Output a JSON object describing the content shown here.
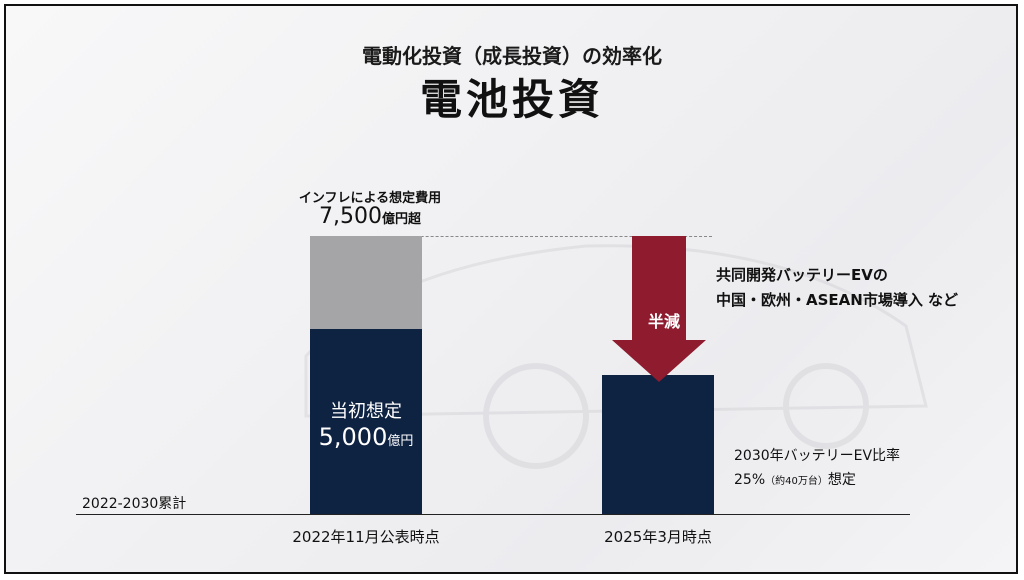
{
  "header": {
    "subtitle": "電動化投資（成長投資）の効率化",
    "title": "電池投資"
  },
  "chart_data": {
    "type": "bar",
    "title": "電池投資",
    "unit": "億円",
    "categories": [
      "2022年11月公表時点",
      "2025年3月時点"
    ],
    "series": [
      {
        "name": "当初想定",
        "values": [
          5000,
          3750
        ]
      },
      {
        "name": "インフレによる想定費用",
        "values": [
          2500,
          0
        ]
      }
    ],
    "cumulative_label": "2022-2030累計",
    "ylim": [
      0,
      7800
    ]
  },
  "labels": {
    "inflation_note": "インフレによる想定費用",
    "total_num": "7,500",
    "total_unit": "億円超",
    "initial_label": "当初想定",
    "initial_num": "5,000",
    "initial_unit": "億円",
    "reduction": "半減",
    "note_line1": "共同開発バッテリーEVの",
    "note_line2": "中国・欧州・ASEAN市場導入 など",
    "ev_line1": "2030年バッテリーEV比率",
    "ev_pct": "25%",
    "ev_detail": "（約40万台）",
    "ev_suffix": "想定"
  },
  "colors": {
    "navy": "#0e2242",
    "gray": "#a5a5a7",
    "red": "#8e1b2e"
  }
}
